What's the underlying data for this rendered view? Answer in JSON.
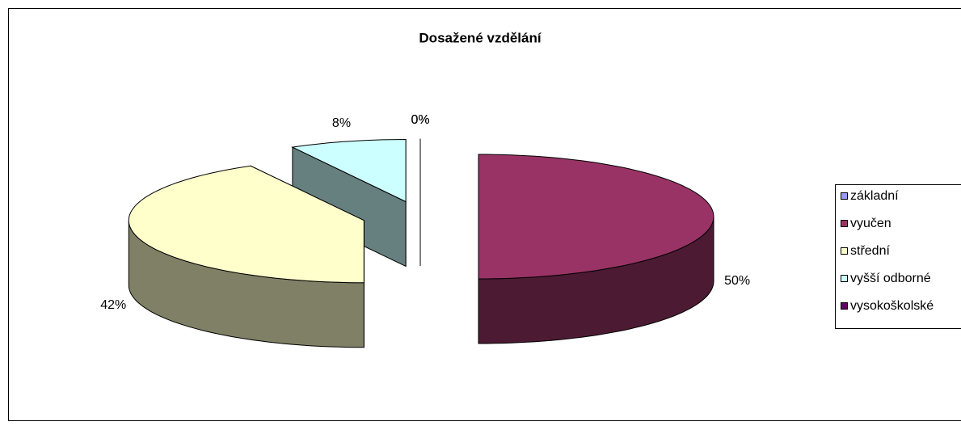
{
  "chart_data": {
    "type": "pie",
    "title": "Dosažené vzdělání",
    "categories": [
      "základní",
      "vyučen",
      "střední",
      "vyšší odborné",
      "vysokoškolské"
    ],
    "values": [
      0,
      50,
      42,
      8,
      0
    ],
    "value_labels": [
      "0%",
      "50%",
      "42%",
      "8%",
      "0%"
    ],
    "colors": [
      "#9999ff",
      "#993366",
      "#ffffcc",
      "#ccffff",
      "#660066"
    ],
    "legend": "right"
  }
}
